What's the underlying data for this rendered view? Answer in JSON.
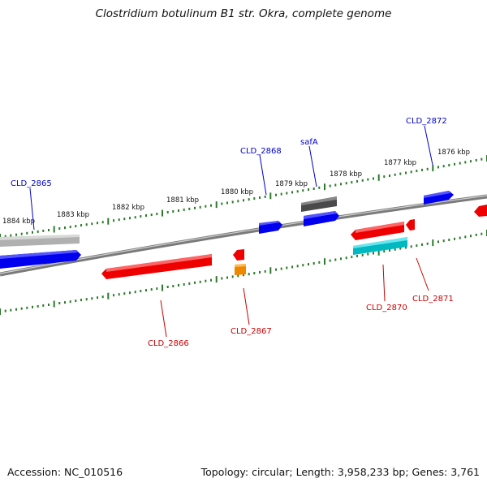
{
  "title": "Clostridium botulinum B1 str. Okra, complete genome",
  "footer": {
    "accession": "Accession: NC_010516",
    "summary": "Topology: circular; Length: 3,958,233 bp; Genes: 3,761"
  },
  "colors": {
    "forward_label": "#0000cc",
    "reverse_label": "#cc0000",
    "tick": "#2a7a2a",
    "backbone": "#808080",
    "gene_blue": "#0000ff",
    "gene_red": "#ff0000",
    "gene_orange": "#ff8c00",
    "gene_cyan": "#00cccc",
    "gene_gray_light": "#bbbbbb",
    "gene_gray_dark": "#555555"
  },
  "scale_labels": [
    "1884 kbp",
    "1883 kbp",
    "1882 kbp",
    "1881 kbp",
    "1880 kbp",
    "1879 kbp",
    "1878 kbp",
    "1877 kbp",
    "1876 kbp"
  ],
  "gene_labels": {
    "forward": [
      "CLD_2865",
      "CLD_2868",
      "safA",
      "CLD_2872"
    ],
    "reverse": [
      "CLD_2866",
      "CLD_2867",
      "CLD_2870",
      "CLD_2871"
    ]
  }
}
